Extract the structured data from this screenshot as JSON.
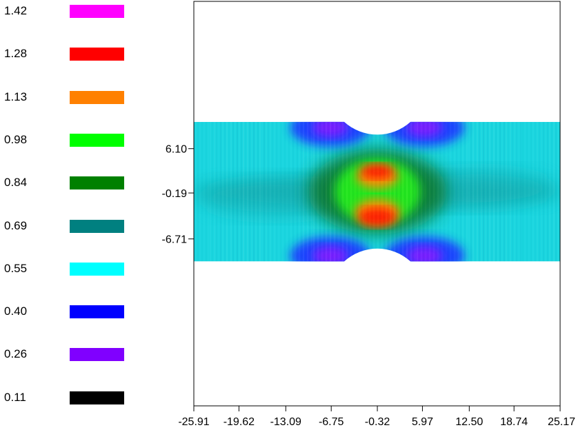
{
  "chart_data": {
    "type": "heatmap",
    "title": "",
    "xlabel": "",
    "ylabel": "",
    "legend": {
      "placement": "left",
      "entries": [
        {
          "label": "1.42",
          "color": "#ff00ff"
        },
        {
          "label": "1.28",
          "color": "#ff0000"
        },
        {
          "label": "1.13",
          "color": "#ff8000"
        },
        {
          "label": "0.98",
          "color": "#00ff00"
        },
        {
          "label": "0.84",
          "color": "#008000"
        },
        {
          "label": "0.69",
          "color": "#008080"
        },
        {
          "label": "0.55",
          "color": "#00ffff"
        },
        {
          "label": "0.40",
          "color": "#0000ff"
        },
        {
          "label": "0.26",
          "color": "#8000ff"
        },
        {
          "label": "0.11",
          "color": "#000000"
        }
      ]
    },
    "x_ticks": [
      "-25.91",
      "-19.62",
      "-13.09",
      "-6.75",
      "-0.32",
      "5.97",
      "12.50",
      "18.74",
      "25.17"
    ],
    "y_ticks": [
      "6.10",
      "-0.19",
      "-6.71"
    ],
    "xlim": [
      -25.91,
      25.17
    ],
    "ylim": [
      -30.4,
      27.0
    ],
    "specimen": {
      "x_range": [
        -25.91,
        25.17
      ],
      "y_range": [
        -9.9,
        9.9
      ],
      "notch_centers_x": -0.32,
      "notch_radius": 6.9,
      "notch_center_offset_y": 15.1
    },
    "field_description_values": {
      "background": 0.55,
      "notch_root_max": 1.28,
      "ligament_center": 0.98,
      "shoulder_min": 0.4
    },
    "grid": false
  }
}
